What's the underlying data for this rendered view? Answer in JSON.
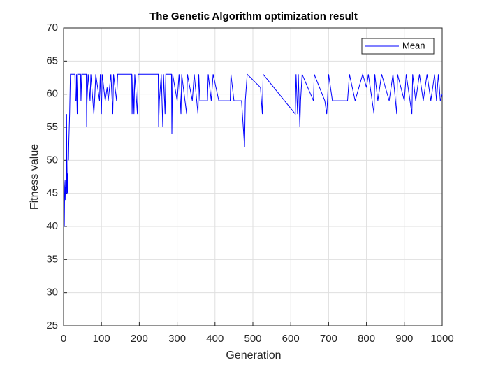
{
  "chart_data": {
    "type": "line",
    "title": "The Genetic Algorithm optimization result",
    "x_label": "Generation",
    "y_label": "Fitness value",
    "x": [
      1,
      2,
      3,
      4,
      5,
      6,
      7,
      8,
      9,
      10,
      11,
      12,
      13,
      14,
      15,
      16,
      17,
      18,
      30,
      31,
      33,
      34,
      36,
      37,
      45,
      46,
      48,
      60,
      61,
      62,
      65,
      70,
      72,
      80,
      82,
      85,
      95,
      97,
      100,
      102,
      110,
      115,
      118,
      125,
      130,
      132,
      140,
      143,
      180,
      181,
      183,
      186,
      188,
      195,
      197,
      250,
      251,
      253,
      258,
      262,
      264,
      268,
      270,
      285,
      286,
      288,
      300,
      305,
      310,
      312,
      325,
      327,
      340,
      345,
      355,
      357,
      360,
      380,
      382,
      390,
      395,
      410,
      440,
      442,
      450,
      470,
      478,
      480,
      485,
      520,
      525,
      527,
      612,
      614,
      618,
      620,
      624,
      626,
      630,
      660,
      662,
      690,
      695,
      697,
      700,
      710,
      750,
      755,
      770,
      790,
      800,
      805,
      820,
      822,
      830,
      840,
      860,
      870,
      880,
      882,
      900,
      905,
      920,
      922,
      930,
      940,
      950,
      960,
      970,
      980,
      985,
      990,
      995,
      1000
    ],
    "series": [
      {
        "name": "Mean",
        "color": "#0000ff",
        "values": [
          40,
          40,
          46,
          47,
          44,
          46,
          45,
          57,
          45,
          48,
          45,
          52,
          50,
          53,
          55,
          57,
          60,
          63,
          63,
          59,
          59,
          63,
          57,
          63,
          63,
          59,
          63,
          63,
          55,
          59,
          63,
          59,
          63,
          57,
          59,
          63,
          59,
          63,
          57,
          63,
          59,
          61,
          59,
          63,
          57,
          63,
          59,
          63,
          63,
          57,
          63,
          57,
          63,
          57,
          63,
          63,
          55,
          59,
          63,
          55,
          63,
          57,
          63,
          63,
          54,
          63,
          59,
          63,
          57,
          63,
          57,
          63,
          59,
          63,
          57,
          63,
          59,
          59,
          63,
          59,
          63,
          59,
          59,
          63,
          59,
          59,
          52,
          59,
          63,
          61,
          57,
          63,
          57,
          63,
          57,
          63,
          55,
          59,
          63,
          59,
          63,
          59,
          57,
          59,
          63,
          59,
          59,
          63,
          59,
          63,
          61,
          63,
          57,
          63,
          59,
          63,
          59,
          63,
          57,
          63,
          59,
          63,
          57,
          63,
          59,
          63,
          59,
          63,
          59,
          63,
          59,
          63,
          59,
          60
        ]
      }
    ],
    "xlim": [
      0,
      1000
    ],
    "xticks": [
      0,
      100,
      200,
      300,
      400,
      500,
      600,
      700,
      800,
      900,
      1000
    ],
    "ylim": [
      25,
      70
    ],
    "yticks": [
      25,
      30,
      35,
      40,
      45,
      50,
      55,
      60,
      65,
      70
    ],
    "grid": true,
    "legend": "northeast"
  }
}
